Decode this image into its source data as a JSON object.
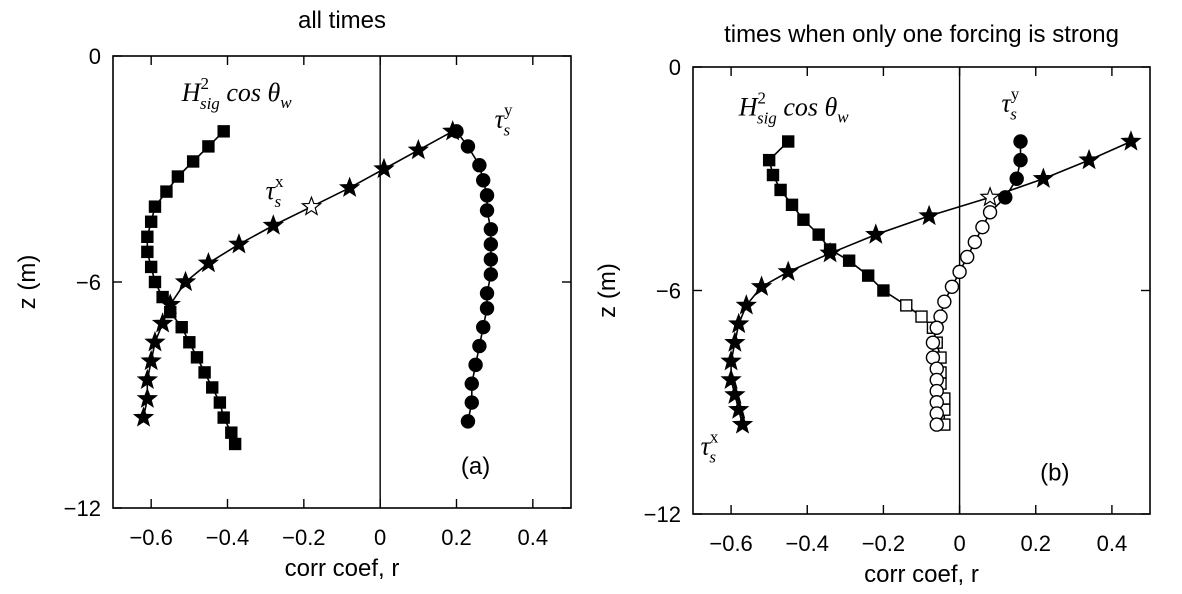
{
  "chart_data": [
    {
      "panel": "a",
      "type": "scatter",
      "title": "all times",
      "xlabel": "corr coef, r",
      "ylabel": "z (m)",
      "xlim": [
        -0.7,
        0.5
      ],
      "ylim": [
        -12,
        0
      ],
      "xticks": [
        -0.6,
        -0.4,
        -0.2,
        0,
        0.2,
        0.4
      ],
      "xticklabels": [
        "−0.6",
        "−0.4",
        "−0.2",
        "0",
        "0.2",
        "0.4"
      ],
      "yticks": [
        0,
        -6,
        -12
      ],
      "yticklabels": [
        "0",
        "−6",
        "−12"
      ],
      "panel_label": "(a)",
      "zero_line": true,
      "grid": false,
      "series": [
        {
          "name": "H_sig^2 cos θ_w",
          "marker": "square",
          "x": [
            -0.41,
            -0.45,
            -0.49,
            -0.53,
            -0.56,
            -0.59,
            -0.6,
            -0.61,
            -0.61,
            -0.6,
            -0.59,
            -0.57,
            -0.55,
            -0.52,
            -0.5,
            -0.48,
            -0.46,
            -0.44,
            -0.42,
            -0.41,
            -0.39,
            -0.38
          ],
          "y": [
            -2.0,
            -2.4,
            -2.8,
            -3.2,
            -3.6,
            -4.0,
            -4.4,
            -4.8,
            -5.2,
            -5.6,
            -6.0,
            -6.4,
            -6.8,
            -7.2,
            -7.6,
            -8.0,
            -8.4,
            -8.8,
            -9.2,
            -9.6,
            -10.0,
            -10.3
          ],
          "label_x": -0.52,
          "label_y": -1.2,
          "label_parts": {
            "base": "H",
            "sup": "2",
            "sub": "sig",
            "tail": " cos θ",
            "tail_sub": "w"
          }
        },
        {
          "name": "τ_s^x",
          "marker": "star",
          "hollow_points": [
            4
          ],
          "x": [
            0.19,
            0.1,
            0.01,
            -0.08,
            -0.18,
            -0.28,
            -0.37,
            -0.45,
            -0.51,
            -0.55,
            -0.57,
            -0.59,
            -0.6,
            -0.61,
            -0.61,
            -0.62
          ],
          "y": [
            -2.0,
            -2.5,
            -3.0,
            -3.5,
            -4.0,
            -4.5,
            -5.0,
            -5.5,
            -6.0,
            -6.6,
            -7.1,
            -7.6,
            -8.1,
            -8.6,
            -9.1,
            -9.6
          ],
          "label_x": -0.3,
          "label_y": -3.8,
          "label_parts": {
            "base": "τ",
            "sup": "x",
            "sub": "s"
          }
        },
        {
          "name": "τ_s^y",
          "marker": "circle",
          "x": [
            0.2,
            0.23,
            0.26,
            0.27,
            0.28,
            0.28,
            0.29,
            0.29,
            0.29,
            0.29,
            0.28,
            0.28,
            0.27,
            0.26,
            0.25,
            0.24,
            0.24,
            0.23
          ],
          "y": [
            -2.0,
            -2.4,
            -2.9,
            -3.3,
            -3.7,
            -4.1,
            -4.6,
            -5.0,
            -5.4,
            -5.8,
            -6.3,
            -6.7,
            -7.2,
            -7.7,
            -8.2,
            -8.7,
            -9.2,
            -9.7
          ],
          "label_x": 0.3,
          "label_y": -1.9,
          "label_parts": {
            "base": "τ",
            "sup": "y",
            "sub": "s"
          }
        }
      ]
    },
    {
      "panel": "b",
      "type": "scatter",
      "title": "times when only one forcing is strong",
      "xlabel": "corr coef, r",
      "ylabel": "z (m)",
      "xlim": [
        -0.7,
        0.5
      ],
      "ylim": [
        -12,
        0
      ],
      "xticks": [
        -0.6,
        -0.4,
        -0.2,
        0,
        0.2,
        0.4
      ],
      "xticklabels": [
        "−0.6",
        "−0.4",
        "−0.2",
        "0",
        "0.2",
        "0.4"
      ],
      "yticks": [
        0,
        -6,
        -12
      ],
      "yticklabels": [
        "0",
        "−6",
        "−12"
      ],
      "panel_label": "(b)",
      "zero_line": true,
      "grid": false,
      "series": [
        {
          "name": "H_sig^2 cos θ_w",
          "marker": "square",
          "hollow_from": 11,
          "x": [
            -0.45,
            -0.5,
            -0.49,
            -0.47,
            -0.44,
            -0.41,
            -0.37,
            -0.34,
            -0.29,
            -0.24,
            -0.2,
            -0.14,
            -0.1,
            -0.07,
            -0.06,
            -0.05,
            -0.05,
            -0.05,
            -0.04,
            -0.04,
            -0.04
          ],
          "y": [
            -2.0,
            -2.5,
            -2.9,
            -3.3,
            -3.7,
            -4.1,
            -4.5,
            -4.9,
            -5.2,
            -5.6,
            -6.0,
            -6.4,
            -6.7,
            -7.0,
            -7.4,
            -7.8,
            -8.2,
            -8.5,
            -8.9,
            -9.2,
            -9.6
          ],
          "label_x": -0.58,
          "label_y": -1.3,
          "label_parts": {
            "base": "H",
            "sup": "2",
            "sub": "sig",
            "tail": " cos θ",
            "tail_sub": "w"
          }
        },
        {
          "name": "τ_s^x",
          "marker": "star",
          "hollow_points": [
            3
          ],
          "x": [
            0.45,
            0.34,
            0.22,
            0.08,
            -0.08,
            -0.22,
            -0.34,
            -0.45,
            -0.52,
            -0.56,
            -0.58,
            -0.59,
            -0.6,
            -0.6,
            -0.59,
            -0.58,
            -0.57
          ],
          "y": [
            -2.0,
            -2.5,
            -3.0,
            -3.5,
            -4.0,
            -4.5,
            -5.0,
            -5.5,
            -5.9,
            -6.4,
            -6.9,
            -7.4,
            -7.9,
            -8.4,
            -8.8,
            -9.2,
            -9.6
          ],
          "label_x": -0.68,
          "label_y": -10.4,
          "label_parts": {
            "base": "τ",
            "sup": "x",
            "sub": "s"
          }
        },
        {
          "name": "τ_s^y",
          "marker": "circle",
          "hollow_from": 4,
          "x": [
            0.16,
            0.16,
            0.15,
            0.12,
            0.08,
            0.06,
            0.04,
            0.02,
            0.0,
            -0.02,
            -0.04,
            -0.05,
            -0.06,
            -0.07,
            -0.07,
            -0.06,
            -0.06,
            -0.06,
            -0.06,
            -0.06,
            -0.06
          ],
          "y": [
            -2.0,
            -2.5,
            -3.0,
            -3.5,
            -3.9,
            -4.3,
            -4.7,
            -5.1,
            -5.5,
            -5.9,
            -6.3,
            -6.7,
            -7.0,
            -7.4,
            -7.8,
            -8.1,
            -8.4,
            -8.7,
            -9.0,
            -9.3,
            -9.6
          ],
          "label_x": 0.11,
          "label_y": -1.2,
          "label_parts": {
            "base": "τ",
            "sup": "y",
            "sub": "s"
          }
        }
      ]
    }
  ]
}
